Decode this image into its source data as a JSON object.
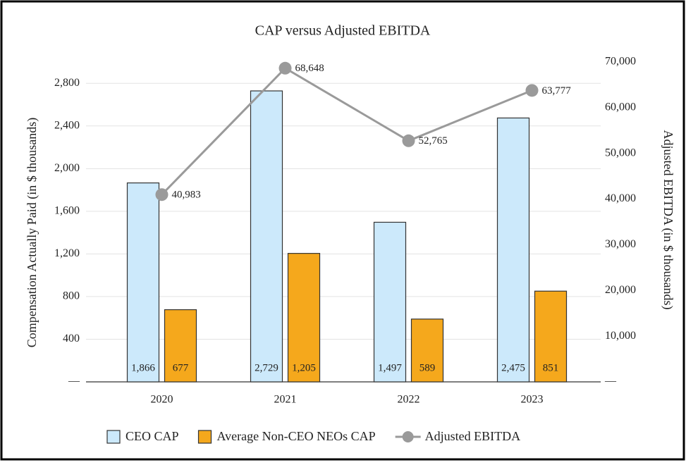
{
  "chart_data": {
    "type": "bar",
    "title": "CAP versus Adjusted EBITDA",
    "y_label": "Compensation Actually Paid (in $ thousands)",
    "y2_label": "Adjusted EBITDA (in $ thousands)",
    "categories": [
      "2020",
      "2021",
      "2022",
      "2023"
    ],
    "series": [
      {
        "name": "CEO CAP",
        "color": "#cce9fb",
        "axis": "y",
        "values": [
          1866,
          2729,
          1497,
          2475
        ],
        "value_labels": [
          "1,866",
          "2,729",
          "1,497",
          "2,475"
        ]
      },
      {
        "name": "Average Non-CEO NEOs CAP",
        "color": "#f5a81c",
        "axis": "y",
        "values": [
          677,
          1205,
          589,
          851
        ],
        "value_labels": [
          "677",
          "1,205",
          "589",
          "851"
        ]
      },
      {
        "name": "Adjusted EBITDA",
        "type": "line",
        "color": "#9a9a9a",
        "axis": "y2",
        "values": [
          40983,
          68648,
          52765,
          63777
        ],
        "value_labels": [
          "40,983",
          "68,648",
          "52,765",
          "63,777"
        ]
      }
    ],
    "ylim": [
      0,
      3000
    ],
    "yticks": [
      {
        "value": 0,
        "label": "—"
      },
      400,
      800,
      {
        "value": 1200,
        "label": "1,200"
      },
      {
        "value": 1600,
        "label": "1,600"
      },
      {
        "value": 2000,
        "label": "2,000"
      },
      {
        "value": 2400,
        "label": "2,400"
      },
      {
        "value": 2800,
        "label": "2,800"
      }
    ],
    "y2lim": [
      0,
      70000
    ],
    "y2ticks": [
      {
        "value": 0,
        "label": "—"
      },
      {
        "value": 10000,
        "label": "10,000"
      },
      {
        "value": 20000,
        "label": "20,000"
      },
      {
        "value": 30000,
        "label": "30,000"
      },
      {
        "value": 40000,
        "label": "40,000"
      },
      {
        "value": 50000,
        "label": "50,000"
      },
      {
        "value": 60000,
        "label": "60,000"
      },
      {
        "value": 70000,
        "label": "70,000"
      }
    ],
    "grid": true,
    "legend": "bottom"
  }
}
